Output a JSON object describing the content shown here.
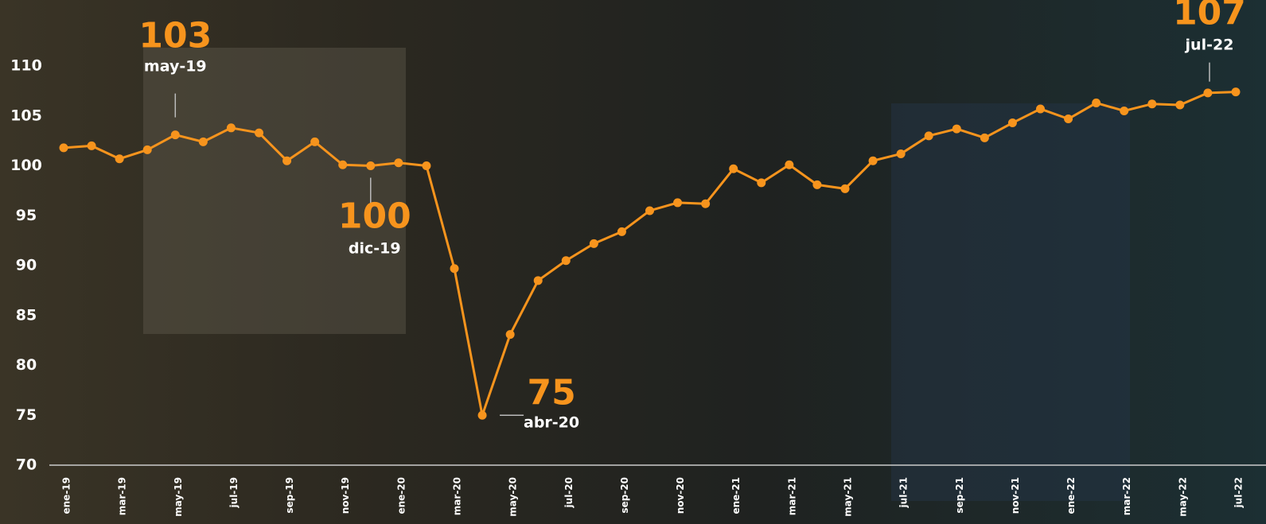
{
  "chart_data": {
    "type": "line",
    "categories": [
      "ene-19",
      null,
      "mar-19",
      null,
      "may-19",
      null,
      "jul-19",
      null,
      "sep-19",
      null,
      "nov-19",
      null,
      "ene-20",
      null,
      "mar-20",
      null,
      "may-20",
      null,
      "jul-20",
      null,
      "sep-20",
      null,
      "nov-20",
      null,
      "ene-21",
      null,
      "mar-21",
      null,
      "may-21",
      null,
      "jul-21",
      null,
      "sep-21",
      null,
      "nov-21",
      null,
      "ene-22",
      null,
      "mar-22",
      null,
      "may-22",
      null,
      "jul-22"
    ],
    "values": [
      101.8,
      102.0,
      100.7,
      101.6,
      103.1,
      102.4,
      103.8,
      103.3,
      100.5,
      102.4,
      100.1,
      100.0,
      100.3,
      100.0,
      89.7,
      75.0,
      83.1,
      88.5,
      90.5,
      92.2,
      93.4,
      95.5,
      96.3,
      96.2,
      99.7,
      98.3,
      100.1,
      98.1,
      97.7,
      100.5,
      101.2,
      103.0,
      103.7,
      102.8,
      104.3,
      105.7,
      104.7,
      106.3,
      105.5,
      106.2,
      106.1,
      107.3,
      107.4
    ],
    "value_labels": [
      null,
      null,
      null,
      null,
      "103",
      null,
      null,
      null,
      null,
      null,
      null,
      "100",
      null,
      null,
      null,
      "75",
      null,
      null,
      null,
      null,
      null,
      null,
      null,
      null,
      null,
      null,
      null,
      null,
      null,
      null,
      null,
      null,
      null,
      null,
      null,
      null,
      null,
      null,
      null,
      null,
      null,
      null,
      "107"
    ],
    "date_labels": [
      null,
      null,
      null,
      null,
      "may-19",
      null,
      null,
      null,
      null,
      null,
      null,
      "dic-19",
      null,
      null,
      null,
      "abr-20",
      null,
      null,
      null,
      null,
      null,
      null,
      null,
      null,
      null,
      null,
      null,
      null,
      null,
      null,
      null,
      null,
      null,
      null,
      null,
      null,
      null,
      null,
      null,
      null,
      null,
      null,
      "jul-22"
    ],
    "color": "#f7941d",
    "ylim": [
      70,
      110
    ],
    "yticks": [
      70,
      75,
      80,
      85,
      90,
      95,
      100,
      105,
      110
    ]
  }
}
